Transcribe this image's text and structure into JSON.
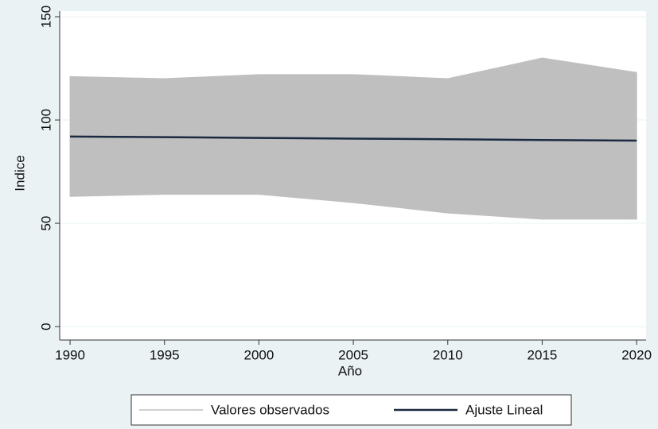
{
  "chart_data": {
    "type": "line",
    "x_label": "Año",
    "y_label": "Indice",
    "x": [
      1990,
      1995,
      2000,
      2005,
      2010,
      2015,
      2020
    ],
    "series": [
      {
        "name": "Valores observados",
        "color": "#bfbfbf",
        "high": [
          121,
          120,
          122,
          122,
          120,
          130,
          123
        ],
        "low": [
          63,
          64,
          64,
          60,
          55,
          52,
          52
        ]
      },
      {
        "name": "Ajuste Lineal",
        "color": "#1a2a40",
        "values": [
          92,
          91.7,
          91.3,
          91,
          90.7,
          90.3,
          90
        ]
      }
    ],
    "xlim": [
      1989.45,
      2020.5
    ],
    "xticks": [
      1990,
      1995,
      2000,
      2005,
      2010,
      2015,
      2020
    ],
    "ylim": [
      -6.5,
      152.7
    ],
    "yticks": [
      0,
      50,
      100,
      150
    ],
    "grid": true,
    "legend": "bottom"
  }
}
